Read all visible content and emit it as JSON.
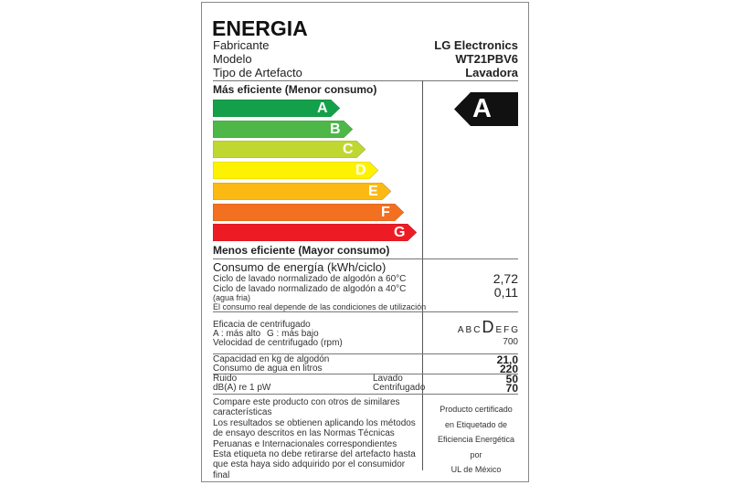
{
  "header": {
    "title": "ENERGIA",
    "rows": [
      {
        "label": "Fabricante",
        "value": "LG Electronics"
      },
      {
        "label": "Modelo",
        "value": "WT21PBV6"
      },
      {
        "label": "Tipo de Artefacto",
        "value": "Lavadora"
      }
    ]
  },
  "scale": {
    "top_label": "Más eficiente (Menor consumo)",
    "bottom_label": "Menos eficiente (Mayor consumo)",
    "classes": [
      {
        "letter": "A",
        "color": "#14a04a"
      },
      {
        "letter": "B",
        "color": "#4db848"
      },
      {
        "letter": "C",
        "color": "#bfd730"
      },
      {
        "letter": "D",
        "color": "#fff200"
      },
      {
        "letter": "E",
        "color": "#fdb913"
      },
      {
        "letter": "F",
        "color": "#f37021"
      },
      {
        "letter": "G",
        "color": "#ed1c24"
      }
    ],
    "rating": "A",
    "rating_color": "#111111"
  },
  "consumption": {
    "title": "Consumo de energía (kWh/ciclo)",
    "line1": "Ciclo de lavado normalizado de algodón a 60°C",
    "value1": "2,72",
    "line2": "Ciclo de lavado normalizado de algodón a 40°C",
    "value2": "0,11",
    "line3": "(agua fria)",
    "note": "El consumo real depende de las condiciones de utilización"
  },
  "spin": {
    "title": "Eficacia de centrifugado",
    "range_a": "A : más alto",
    "range_g": "G : más bajo",
    "classes": [
      "A",
      "B",
      "C",
      "D",
      "E",
      "F",
      "G"
    ],
    "selected": "D",
    "speed_label": "Velocidad de centrifugado (rpm)",
    "speed": "700"
  },
  "specs": {
    "capacity_label": "Capacidad en kg de algodón",
    "capacity": "21,0",
    "water_label": "Consumo de agua en litros",
    "water": "220",
    "noise_label": "Ruido",
    "noise_unit": "dB(A) re 1 pW",
    "wash_label": "Lavado",
    "wash": "50",
    "spin_label": "Centrifugado",
    "spin": "70"
  },
  "footer": {
    "notes": [
      "Compare este producto con otros de similares",
      "características",
      "Los resultados se obtienen aplicando los métodos",
      "de ensayo descritos en las Normas Técnicas",
      "Peruanas e Internacionales correspondientes",
      "Esta etiqueta no debe retirarse del artefacto hasta",
      "que esta haya sido adquirido por el consumidor",
      "final"
    ],
    "cert": [
      "Producto certificado",
      "en Etiquetado de",
      "Eficiencia Energética",
      "por",
      "UL de México"
    ]
  }
}
